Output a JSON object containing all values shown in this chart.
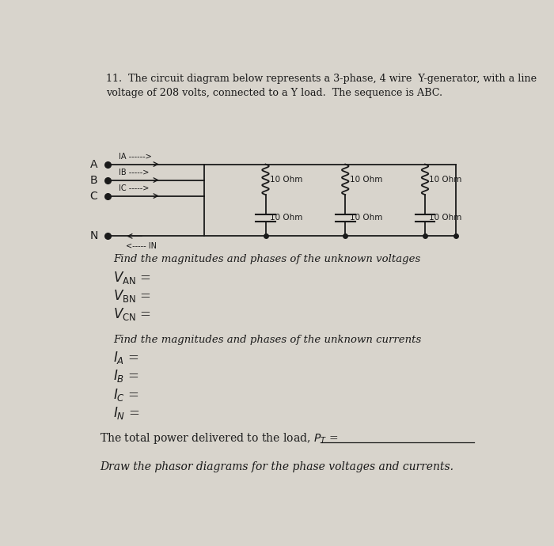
{
  "bg_color": "#d8d4cc",
  "text_color": "#1a1a1a",
  "title_line1": "11.  The circuit diagram below represents a 3-phase, 4 wire  Y-generator, with a line",
  "title_line2": "voltage of 208 volts, connected to a Y load.  The sequence is ABC.",
  "find_voltages": "Find the magnitudes and phases of the unknown voltages",
  "find_currents": "Find the magnitudes and phases of the unknown currents",
  "power_line": "The total power delivered to the load, P",
  "phasor_line": "Draw the phasor diagrams for the phase voltages and currents.",
  "resistor_label": "10 Ohm",
  "node_A": "A",
  "node_B": "B",
  "node_C": "C",
  "node_N": "N",
  "label_IA": "IA ------>",
  "label_IB": "IB ----->",
  "label_IC": "IC ----->",
  "label_IN": "<----- IN"
}
